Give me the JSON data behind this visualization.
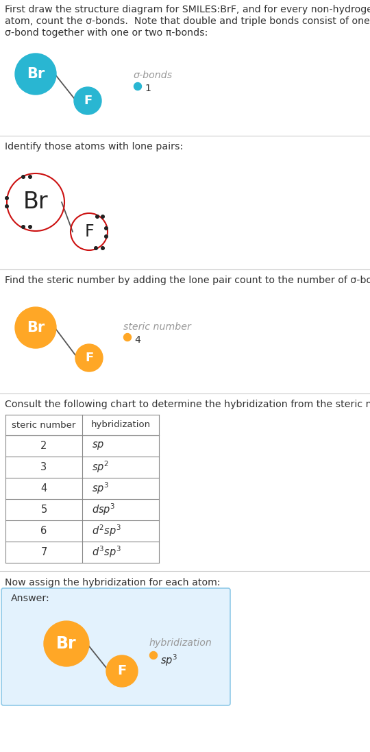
{
  "title_line1": "First draw the structure diagram for SMILES:BrF, and for every non-hydrogen",
  "title_line2": "atom, count the σ-bonds.  Note that double and triple bonds consist of one",
  "title_line3": "σ-bond together with one or two π-bonds:",
  "section2_text": "Identify those atoms with lone pairs:",
  "section3_text": "Find the steric number by adding the lone pair count to the number of σ-bonds:",
  "section4_text": "Consult the following chart to determine the hybridization from the steric number:",
  "section5_text": "Now assign the hybridization for each atom:",
  "answer_label": "Answer:",
  "br_color_s1": "#29b6d2",
  "f_color_s1": "#29b6d2",
  "br_color_s3": "#FFA726",
  "f_color_s3": "#FFA726",
  "br_color_s5": "#FFA726",
  "f_color_s5": "#FFA726",
  "sigma_bond_label": "σ-bonds",
  "sigma_bond_value": "1",
  "steric_label": "steric number",
  "steric_value": "4",
  "hybrid_label": "hybridization",
  "dot_color_s1": "#29b6d2",
  "dot_color_s3": "#FFA726",
  "dot_color_s5": "#FFA726",
  "table_steric": [
    2,
    3,
    4,
    5,
    6,
    7
  ],
  "table_hybrid": [
    "sp",
    "sp^2",
    "sp^3",
    "dsp^3",
    "d^2sp^3",
    "d^3sp^3"
  ],
  "answer_bg": "#e3f2fd",
  "answer_border": "#90cae8",
  "lone_pair_color": "#222222",
  "red_circle_color": "#cc1111",
  "bg_color": "#ffffff",
  "text_color": "#333333",
  "gray_text": "#999999"
}
